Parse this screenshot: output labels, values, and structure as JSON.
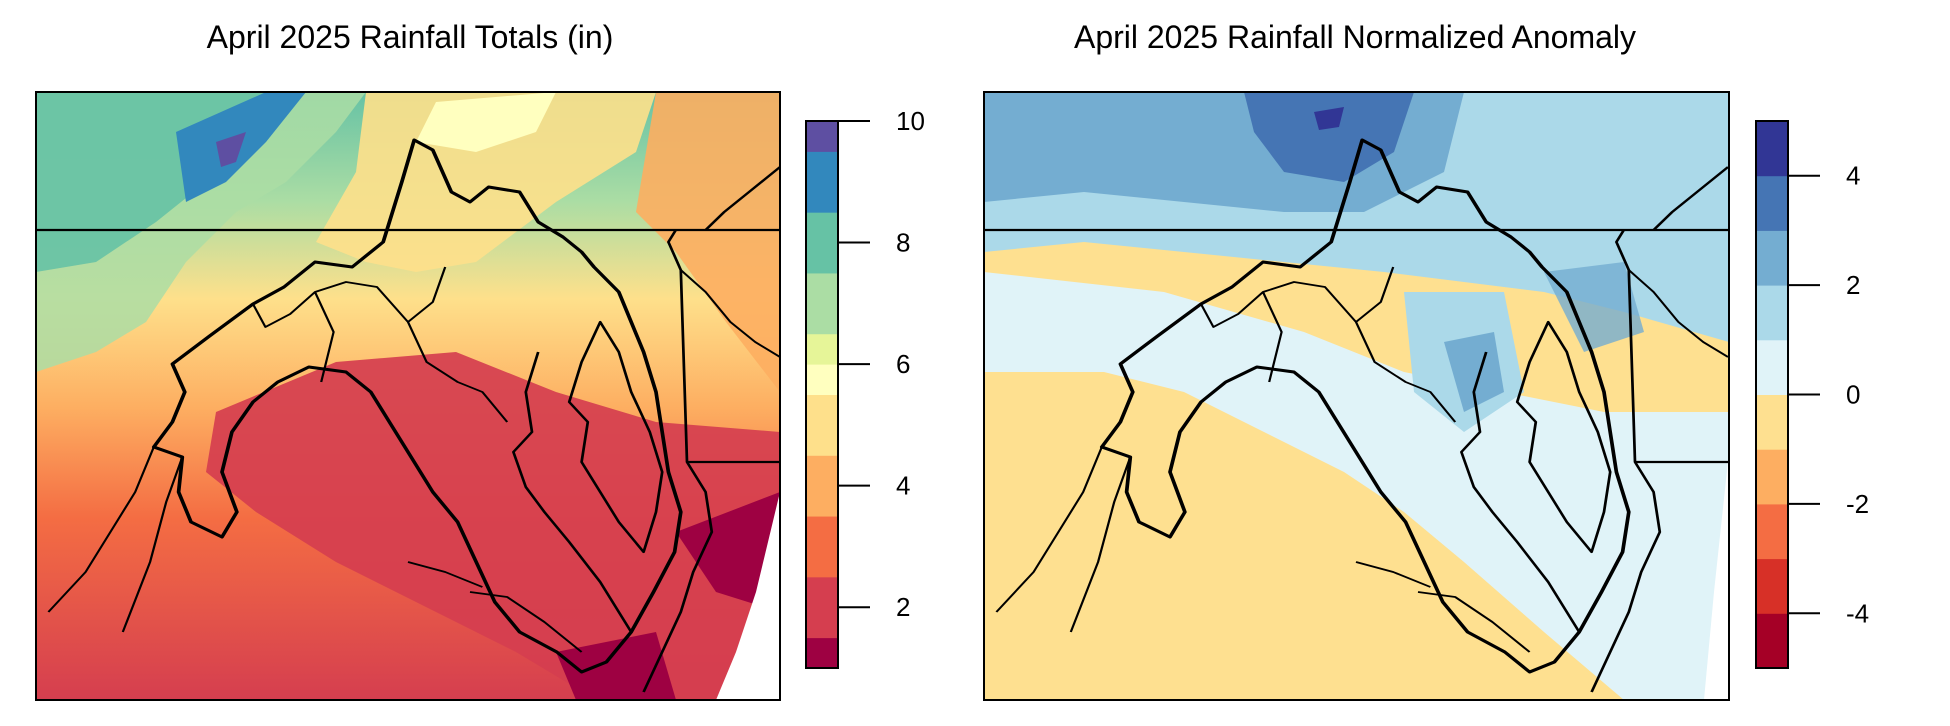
{
  "panels": [
    {
      "id": "totals",
      "title": "April 2025 Rainfall Totals (in)",
      "legend": {
        "range": [
          1,
          10
        ],
        "ticks": [
          {
            "value": 2,
            "label": "2"
          },
          {
            "value": 4,
            "label": "4"
          },
          {
            "value": 6,
            "label": "6"
          },
          {
            "value": 8,
            "label": "8"
          },
          {
            "value": 10,
            "label": "10"
          }
        ],
        "bins": [
          {
            "from": 1.0,
            "to": 1.5,
            "color": "#9e0142"
          },
          {
            "from": 1.5,
            "to": 2.5,
            "color": "#d53e4f"
          },
          {
            "from": 2.5,
            "to": 3.5,
            "color": "#f46d43"
          },
          {
            "from": 3.5,
            "to": 4.5,
            "color": "#fdae61"
          },
          {
            "from": 4.5,
            "to": 5.5,
            "color": "#fee08b"
          },
          {
            "from": 5.5,
            "to": 6.0,
            "color": "#ffffbf"
          },
          {
            "from": 6.0,
            "to": 6.5,
            "color": "#e6f598"
          },
          {
            "from": 6.5,
            "to": 7.5,
            "color": "#abdda4"
          },
          {
            "from": 7.5,
            "to": 8.5,
            "color": "#66c2a5"
          },
          {
            "from": 8.5,
            "to": 9.5,
            "color": "#3288bd"
          },
          {
            "from": 9.5,
            "to": 10.0,
            "color": "#5e4fa2"
          }
        ]
      }
    },
    {
      "id": "anomaly",
      "title": "April 2025 Rainfall Normalized Anomaly",
      "legend": {
        "range": [
          -5,
          5
        ],
        "ticks": [
          {
            "value": -4,
            "label": "-4"
          },
          {
            "value": -2,
            "label": "-2"
          },
          {
            "value": 0,
            "label": "0"
          },
          {
            "value": 2,
            "label": "2"
          },
          {
            "value": 4,
            "label": "4"
          }
        ],
        "bins": [
          {
            "from": -5,
            "to": -4,
            "color": "#a50026"
          },
          {
            "from": -4,
            "to": -3,
            "color": "#d73027"
          },
          {
            "from": -3,
            "to": -2,
            "color": "#f46d43"
          },
          {
            "from": -2,
            "to": -1,
            "color": "#fdae61"
          },
          {
            "from": -1,
            "to": 0,
            "color": "#fee090"
          },
          {
            "from": 0,
            "to": 1,
            "color": "#e0f3f8"
          },
          {
            "from": 1,
            "to": 2,
            "color": "#abd9e9"
          },
          {
            "from": 2,
            "to": 3,
            "color": "#74add1"
          },
          {
            "from": 3,
            "to": 4,
            "color": "#4575b4"
          },
          {
            "from": 4,
            "to": 5,
            "color": "#313695"
          }
        ]
      }
    }
  ]
}
